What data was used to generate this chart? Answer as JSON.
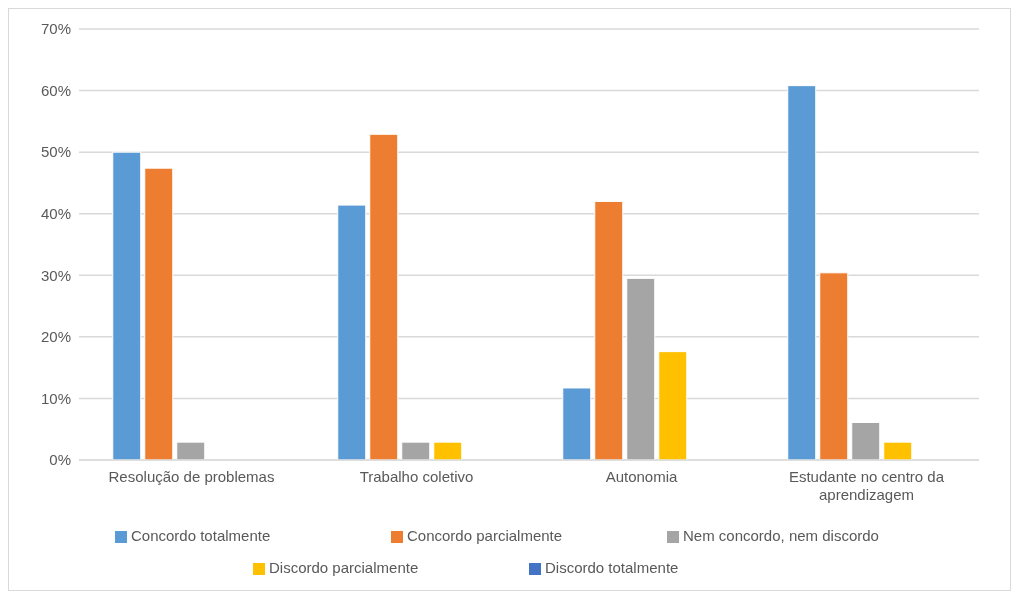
{
  "chart_data": {
    "type": "bar",
    "categories": [
      "Resolução de problemas",
      "Trabalho coletivo",
      "Autonomia",
      "Estudante no centro da aprendizagem"
    ],
    "series": [
      {
        "name": "Concordo totalmente",
        "color": "#5b9bd5",
        "values": [
          50,
          41.4,
          11.7,
          60.8
        ]
      },
      {
        "name": "Concordo parcialmente",
        "color": "#ed7d31",
        "values": [
          47.4,
          52.9,
          42,
          30.4
        ]
      },
      {
        "name": "Nem concordo, nem discordo",
        "color": "#a5a5a5",
        "values": [
          2.9,
          2.9,
          29.5,
          6.1
        ]
      },
      {
        "name": "Discordo parcialmente",
        "color": "#ffc000",
        "values": [
          0,
          2.9,
          17.6,
          2.9
        ]
      },
      {
        "name": "Discordo totalmente",
        "color": "#4472c4",
        "values": [
          0,
          0,
          0,
          0
        ]
      }
    ],
    "ylim": [
      0,
      70
    ],
    "yticks": [
      {
        "value": 0,
        "label": "0%"
      },
      {
        "value": 10,
        "label": "10%"
      },
      {
        "value": 20,
        "label": "20%"
      },
      {
        "value": 30,
        "label": "30%"
      },
      {
        "value": 40,
        "label": "40%"
      },
      {
        "value": 50,
        "label": "50%"
      },
      {
        "value": 60,
        "label": "60%"
      },
      {
        "value": 70,
        "label": "70%"
      }
    ],
    "grid": "y",
    "legend": "bottom"
  }
}
